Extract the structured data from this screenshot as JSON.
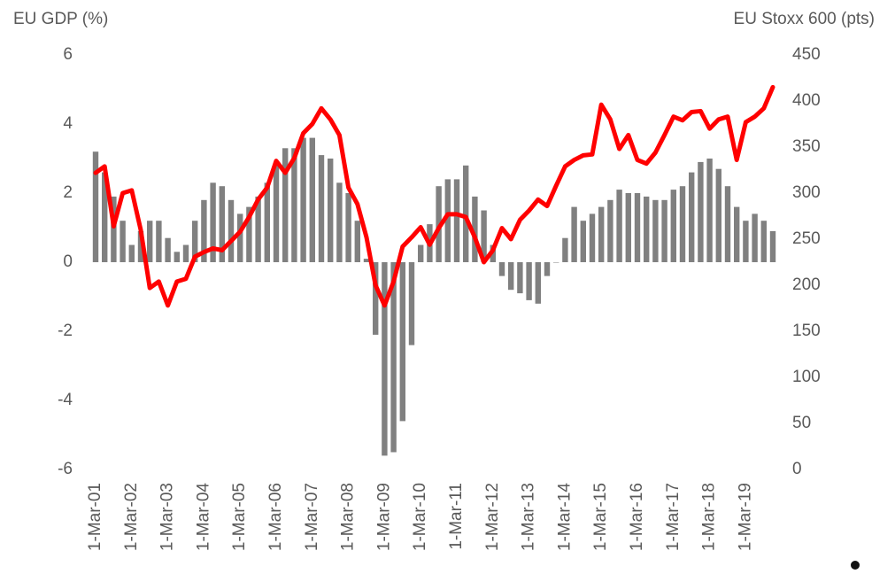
{
  "chart_data": {
    "type": "bar-line",
    "y_title": "EU GDP (%)",
    "y2_title": "EU Stoxx 600 (pts)",
    "categories": [
      "1-Mar-01",
      null,
      null,
      null,
      "1-Mar-02",
      null,
      null,
      null,
      "1-Mar-03",
      null,
      null,
      null,
      "1-Mar-04",
      null,
      null,
      null,
      "1-Mar-05",
      null,
      null,
      null,
      "1-Mar-06",
      null,
      null,
      null,
      "1-Mar-07",
      null,
      null,
      null,
      "1-Mar-08",
      null,
      null,
      null,
      "1-Mar-09",
      null,
      null,
      null,
      "1-Mar-10",
      null,
      null,
      null,
      "1-Mar-11",
      null,
      null,
      null,
      "1-Mar-12",
      null,
      null,
      null,
      "1-Mar-13",
      null,
      null,
      null,
      "1-Mar-14",
      null,
      null,
      null,
      "1-Mar-15",
      null,
      null,
      null,
      "1-Mar-16",
      null,
      null,
      null,
      "1-Mar-17",
      null,
      null,
      null,
      "1-Mar-18",
      null,
      null,
      null,
      "1-Mar-19",
      null,
      null,
      null
    ],
    "series": [
      {
        "type": "bar",
        "color": "#808080",
        "values": [
          3.2,
          2.6,
          1.9,
          1.2,
          0.5,
          0.9,
          1.2,
          1.2,
          0.7,
          0.3,
          0.5,
          1.2,
          1.8,
          2.3,
          2.2,
          1.8,
          1.4,
          1.6,
          1.9,
          2.3,
          2.8,
          3.3,
          3.3,
          3.6,
          3.6,
          3.1,
          3.0,
          2.3,
          2.0,
          1.2,
          0.1,
          -2.1,
          -5.6,
          -5.5,
          -4.6,
          -2.4,
          0.5,
          1.1,
          2.2,
          2.4,
          2.4,
          2.8,
          1.9,
          1.5,
          0.5,
          -0.4,
          -0.8,
          -0.9,
          -1.1,
          -1.2,
          -0.4,
          0.0,
          0.7,
          1.6,
          1.2,
          1.4,
          1.6,
          1.8,
          2.1,
          2.0,
          2.0,
          1.9,
          1.8,
          1.8,
          2.1,
          2.2,
          2.6,
          2.9,
          3.0,
          2.7,
          2.2,
          1.6,
          1.2,
          1.4,
          1.2,
          0.9
        ]
      },
      {
        "type": "line",
        "axis": "y2",
        "color": "#ff0000",
        "values": [
          322,
          329,
          264,
          300,
          303,
          260,
          197,
          204,
          178,
          204,
          207,
          231,
          236,
          240,
          238,
          248,
          258,
          274,
          293,
          306,
          335,
          322,
          338,
          365,
          375,
          392,
          380,
          363,
          306,
          288,
          252,
          200,
          178,
          204,
          242,
          252,
          263,
          244,
          262,
          277,
          277,
          274,
          252,
          225,
          238,
          262,
          250,
          271,
          281,
          293,
          286,
          308,
          329,
          336,
          341,
          342,
          396,
          380,
          348,
          363,
          336,
          332,
          344,
          363,
          383,
          379,
          388,
          389,
          370,
          380,
          383,
          336,
          377,
          383,
          392,
          415
        ]
      }
    ],
    "ylim": [
      -6,
      6
    ],
    "yticks": [
      -6,
      -4,
      -2,
      0,
      2,
      4,
      6
    ],
    "y2lim": [
      0,
      450
    ],
    "y2ticks": [
      0,
      50,
      100,
      150,
      200,
      250,
      300,
      350,
      400,
      450
    ]
  }
}
